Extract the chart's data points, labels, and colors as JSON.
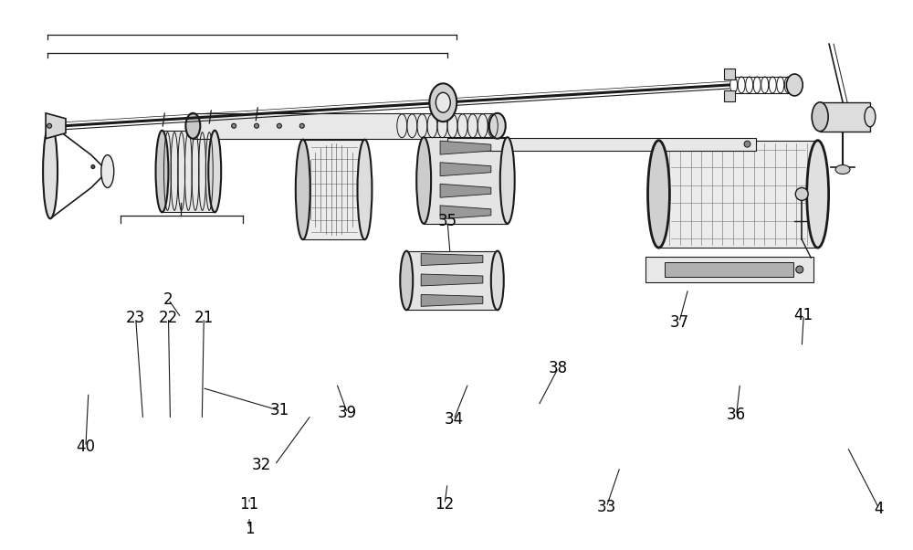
{
  "bg_color": "#ffffff",
  "line_color": "#1a1a1a",
  "label_color": "#000000",
  "fig_width": 10.0,
  "fig_height": 6.02
}
